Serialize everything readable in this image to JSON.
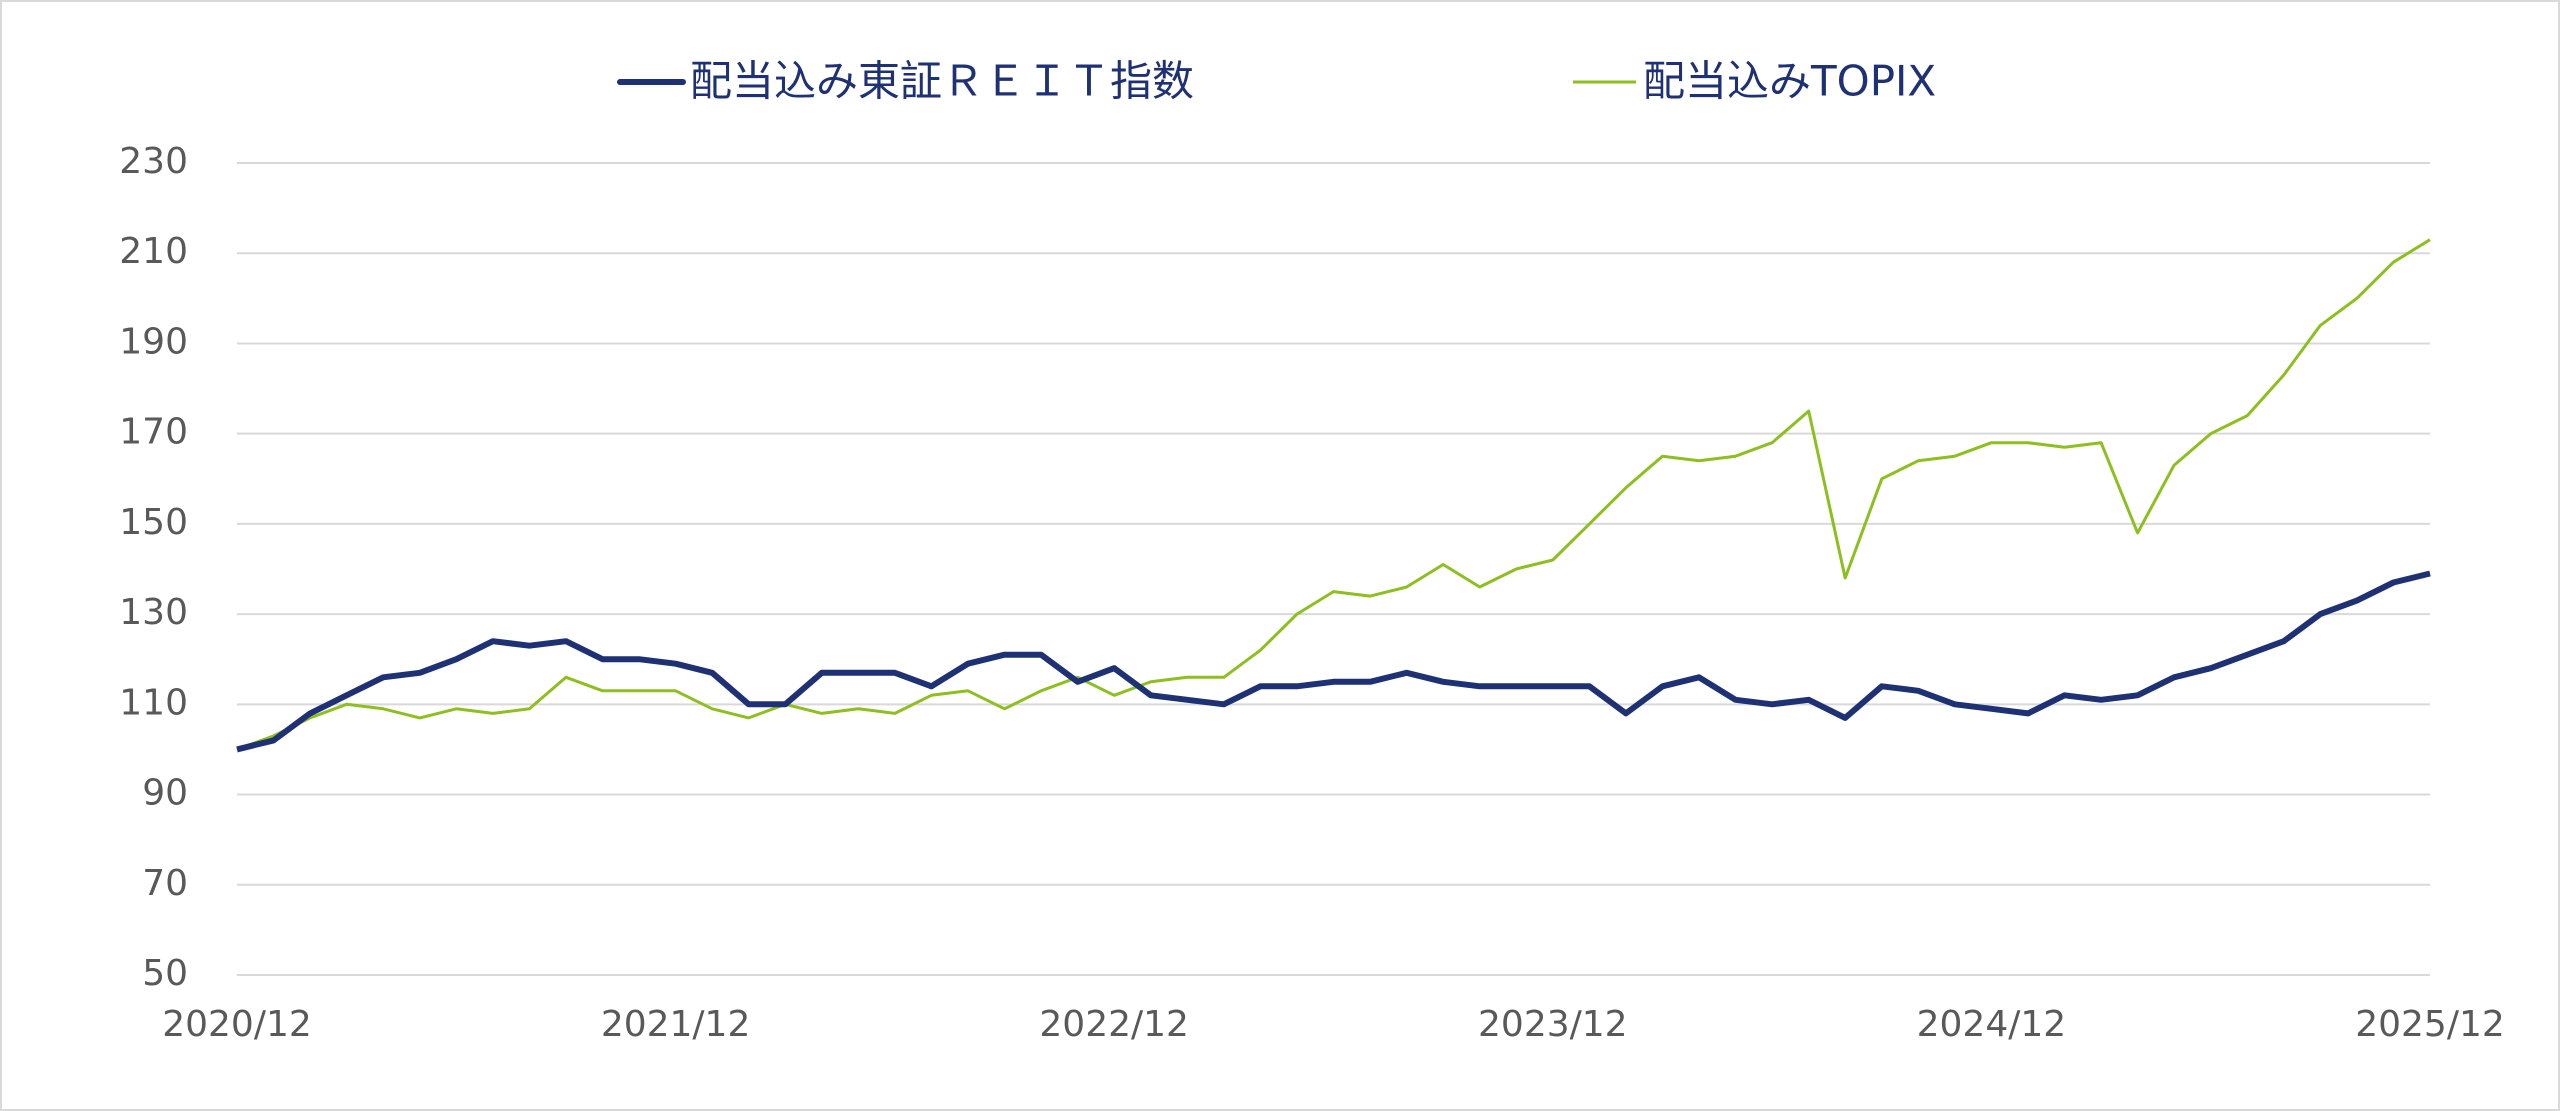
{
  "chart_data": {
    "type": "line",
    "categories": [
      "2020/12",
      null,
      null,
      null,
      null,
      null,
      null,
      null,
      null,
      null,
      null,
      null,
      "2021/12",
      null,
      null,
      null,
      null,
      null,
      null,
      null,
      null,
      null,
      null,
      null,
      "2022/12",
      null,
      null,
      null,
      null,
      null,
      null,
      null,
      null,
      null,
      null,
      null,
      "2023/12",
      null,
      null,
      null,
      null,
      null,
      null,
      null,
      null,
      null,
      null,
      null,
      "2024/12",
      null,
      null,
      null,
      null,
      null,
      null,
      null,
      null,
      null,
      null,
      null,
      "2025/12"
    ],
    "series": [
      {
        "name": "配当込み東証ＲＥＩＴ指数",
        "color": "#1f3175",
        "width": 6,
        "values": [
          100,
          102,
          108,
          112,
          116,
          117,
          120,
          124,
          123,
          124,
          120,
          120,
          119,
          117,
          110,
          110,
          117,
          117,
          117,
          114,
          119,
          121,
          121,
          115,
          118,
          112,
          111,
          110,
          114,
          114,
          115,
          115,
          117,
          115,
          114,
          114,
          114,
          114,
          108,
          114,
          116,
          111,
          110,
          111,
          107,
          114,
          113,
          110,
          109,
          108,
          112,
          111,
          112,
          116,
          118,
          121,
          124,
          130,
          133,
          137,
          139
        ]
      },
      {
        "name": "配当込みTOPIX",
        "color": "#8cbf1f",
        "width": 3,
        "values": [
          100,
          103,
          107,
          110,
          109,
          107,
          109,
          108,
          109,
          116,
          113,
          113,
          113,
          109,
          107,
          110,
          108,
          109,
          108,
          112,
          113,
          109,
          113,
          116,
          112,
          115,
          116,
          116,
          122,
          130,
          135,
          134,
          136,
          141,
          136,
          140,
          142,
          150,
          158,
          165,
          164,
          165,
          168,
          175,
          138,
          160,
          164,
          165,
          168,
          168,
          167,
          168,
          148,
          163,
          170,
          174,
          183,
          194,
          200,
          208,
          213
        ]
      }
    ],
    "ylim": [
      50,
      230
    ],
    "yticks": [
      50,
      70,
      90,
      110,
      130,
      150,
      170,
      190,
      210,
      230
    ],
    "grid": true
  }
}
